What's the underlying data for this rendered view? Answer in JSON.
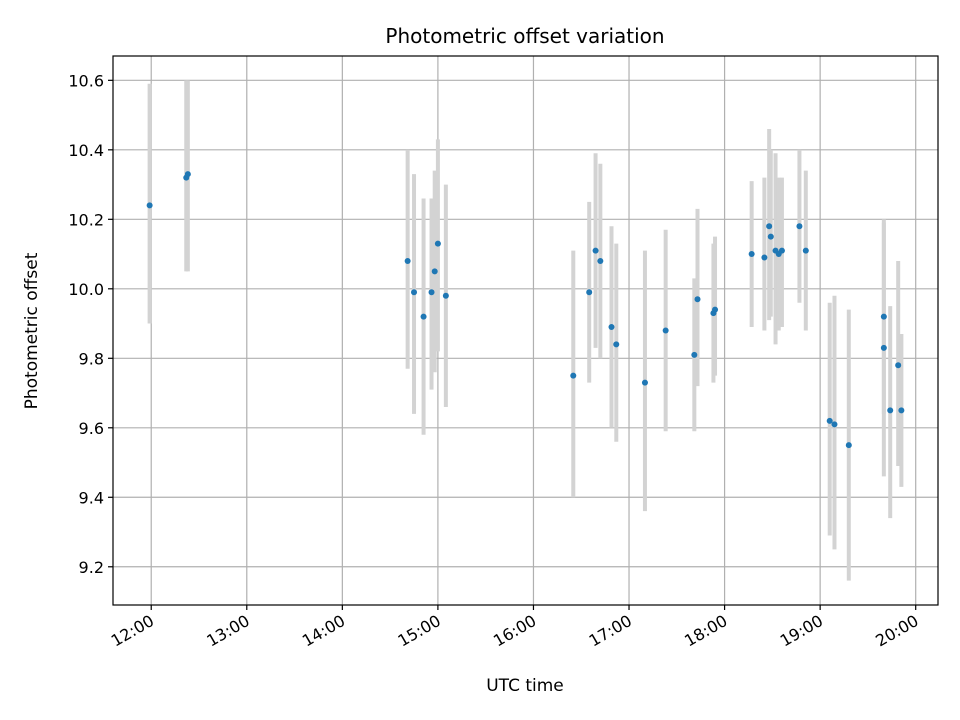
{
  "chart_data": {
    "type": "scatter",
    "title": "Photometric offset variation",
    "xlabel": "UTC time",
    "ylabel": "Photometric offset",
    "x_is_time": true,
    "xlim": [
      "11:36",
      "20:14"
    ],
    "ylim": [
      9.09,
      10.67
    ],
    "xticks": [
      "12:00",
      "13:00",
      "14:00",
      "15:00",
      "16:00",
      "17:00",
      "18:00",
      "19:00",
      "20:00"
    ],
    "yticks": [
      9.2,
      9.4,
      9.6,
      9.8,
      10.0,
      10.2,
      10.4,
      10.6
    ],
    "ytick_labels": [
      "9.2",
      "9.4",
      "9.6",
      "9.8",
      "10.0",
      "10.2",
      "10.4",
      "10.6"
    ],
    "grid": true,
    "point_color": "#1f77b4",
    "errorbar_color": "#d3d3d3",
    "points": [
      {
        "x": "11:59",
        "y": 10.24,
        "lo": 9.9,
        "hi": 10.59
      },
      {
        "x": "12:22",
        "y": 10.32,
        "lo": 10.05,
        "hi": 10.6
      },
      {
        "x": "12:23",
        "y": 10.33,
        "lo": 10.05,
        "hi": 10.6
      },
      {
        "x": "14:41",
        "y": 10.08,
        "lo": 9.77,
        "hi": 10.4
      },
      {
        "x": "14:45",
        "y": 9.99,
        "lo": 9.64,
        "hi": 10.33
      },
      {
        "x": "14:51",
        "y": 9.92,
        "lo": 9.58,
        "hi": 10.26
      },
      {
        "x": "14:56",
        "y": 9.99,
        "lo": 9.71,
        "hi": 10.26
      },
      {
        "x": "14:58",
        "y": 10.05,
        "lo": 9.76,
        "hi": 10.34
      },
      {
        "x": "15:00",
        "y": 10.13,
        "lo": 9.82,
        "hi": 10.43
      },
      {
        "x": "15:05",
        "y": 9.98,
        "lo": 9.66,
        "hi": 10.3
      },
      {
        "x": "16:25",
        "y": 9.75,
        "lo": 9.4,
        "hi": 10.11
      },
      {
        "x": "16:35",
        "y": 9.99,
        "lo": 9.73,
        "hi": 10.25
      },
      {
        "x": "16:39",
        "y": 10.11,
        "lo": 9.83,
        "hi": 10.39
      },
      {
        "x": "16:42",
        "y": 10.08,
        "lo": 9.8,
        "hi": 10.36
      },
      {
        "x": "16:49",
        "y": 9.89,
        "lo": 9.6,
        "hi": 10.18
      },
      {
        "x": "16:52",
        "y": 9.84,
        "lo": 9.56,
        "hi": 10.13
      },
      {
        "x": "17:10",
        "y": 9.73,
        "lo": 9.36,
        "hi": 10.11
      },
      {
        "x": "17:23",
        "y": 9.88,
        "lo": 9.59,
        "hi": 10.17
      },
      {
        "x": "17:41",
        "y": 9.81,
        "lo": 9.59,
        "hi": 10.03
      },
      {
        "x": "17:43",
        "y": 9.97,
        "lo": 9.72,
        "hi": 10.23
      },
      {
        "x": "17:53",
        "y": 9.93,
        "lo": 9.73,
        "hi": 10.13
      },
      {
        "x": "17:54",
        "y": 9.94,
        "lo": 9.75,
        "hi": 10.15
      },
      {
        "x": "18:17",
        "y": 10.1,
        "lo": 9.89,
        "hi": 10.31
      },
      {
        "x": "18:25",
        "y": 10.09,
        "lo": 9.88,
        "hi": 10.32
      },
      {
        "x": "18:28",
        "y": 10.18,
        "lo": 9.91,
        "hi": 10.46
      },
      {
        "x": "18:29",
        "y": 10.15,
        "lo": 9.92,
        "hi": 10.4
      },
      {
        "x": "18:32",
        "y": 10.11,
        "lo": 9.84,
        "hi": 10.39
      },
      {
        "x": "18:34",
        "y": 10.1,
        "lo": 9.88,
        "hi": 10.32
      },
      {
        "x": "18:36",
        "y": 10.11,
        "lo": 9.89,
        "hi": 10.32
      },
      {
        "x": "18:47",
        "y": 10.18,
        "lo": 9.96,
        "hi": 10.4
      },
      {
        "x": "18:51",
        "y": 10.11,
        "lo": 9.88,
        "hi": 10.34
      },
      {
        "x": "19:06",
        "y": 9.62,
        "lo": 9.29,
        "hi": 9.96
      },
      {
        "x": "19:09",
        "y": 9.61,
        "lo": 9.25,
        "hi": 9.98
      },
      {
        "x": "19:18",
        "y": 9.55,
        "lo": 9.16,
        "hi": 9.94
      },
      {
        "x": "19:40",
        "y": 9.92,
        "lo": 9.64,
        "hi": 10.2
      },
      {
        "x": "19:40",
        "y": 9.83,
        "lo": 9.46,
        "hi": 10.19
      },
      {
        "x": "19:44",
        "y": 9.65,
        "lo": 9.34,
        "hi": 9.95
      },
      {
        "x": "19:49",
        "y": 9.78,
        "lo": 9.49,
        "hi": 10.08
      },
      {
        "x": "19:51",
        "y": 9.65,
        "lo": 9.43,
        "hi": 9.87
      }
    ]
  }
}
